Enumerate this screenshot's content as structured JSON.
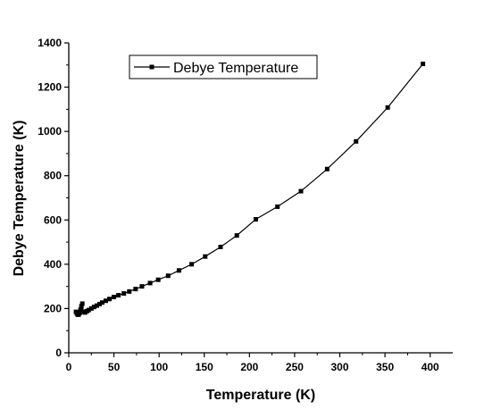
{
  "chart_data": {
    "type": "line",
    "xlabel": "Temperature (K)",
    "ylabel": "Debye Temperature (K)",
    "xlim": [
      0,
      425
    ],
    "ylim": [
      0,
      1400
    ],
    "x_ticks": [
      0,
      50,
      100,
      150,
      200,
      250,
      300,
      350,
      400
    ],
    "y_ticks": [
      0,
      200,
      400,
      600,
      800,
      1000,
      1200,
      1400
    ],
    "grid": false,
    "legend": "top-left",
    "series": [
      {
        "name": "Debye Temperature",
        "color": "#000000",
        "marker": "square",
        "x": [
          8,
          9,
          10,
          11,
          12,
          13,
          14,
          15,
          16,
          18,
          20,
          22,
          25,
          28,
          31,
          34,
          37,
          41,
          45,
          50,
          55,
          61,
          67,
          74,
          81,
          90,
          99,
          110,
          122,
          136,
          151,
          168,
          186,
          207,
          231,
          257,
          286,
          318,
          353,
          392
        ],
        "y": [
          185,
          178,
          172,
          173,
          180,
          195,
          210,
          222,
          185,
          182,
          188,
          193,
          200,
          207,
          213,
          220,
          227,
          235,
          243,
          252,
          260,
          268,
          277,
          288,
          300,
          315,
          330,
          348,
          372,
          400,
          435,
          478,
          530,
          603,
          660,
          730,
          830,
          955,
          1108,
          1305
        ]
      }
    ]
  }
}
